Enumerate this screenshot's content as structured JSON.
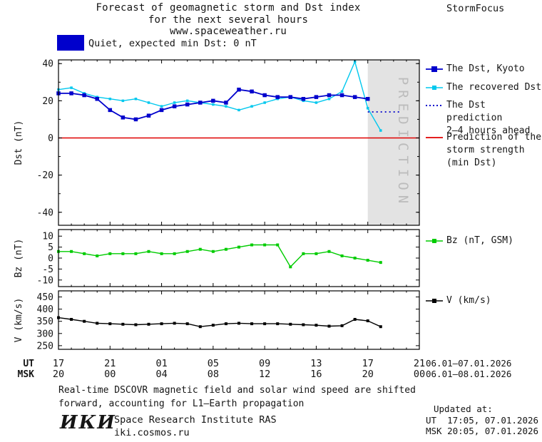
{
  "header": {
    "title_line1": "Forecast of geomagnetic storm and Dst index",
    "title_line2": "for the next several hours",
    "title_line3": "www.spaceweather.ru",
    "brand": "StormFocus"
  },
  "status": {
    "label": "Quiet, expected min Dst: 0 nT"
  },
  "colors": {
    "dst_blue": "#0000cc",
    "recovered_cyan": "#00c8ee",
    "storm_red": "#e00000",
    "bz_green": "#00cc00",
    "v_black": "#000000",
    "quiet_blue": "#0000cc",
    "band_gray": "#e3e3e3"
  },
  "legend": {
    "dst_kyoto": "The Dst, Kyoto",
    "recovered": "The recovered Dst",
    "prediction_line1": "The Dst prediction",
    "prediction_line2": "2–4 hours ahead",
    "storm_line1": "Prediction of the",
    "storm_line2": "storm strength",
    "storm_line3": "(min Dst)",
    "bz": "Bz (nT, GSM)",
    "v": "V (km/s)"
  },
  "axes": {
    "ut_label": "UT",
    "msk_label": "MSK",
    "ut_ticks": [
      "17",
      "21",
      "01",
      "05",
      "09",
      "13",
      "17",
      "21"
    ],
    "msk_ticks": [
      "20",
      "00",
      "04",
      "08",
      "12",
      "16",
      "20",
      "00"
    ],
    "date_range_ut": "06.01–07.01.2026",
    "date_range_msk": "06.01–08.01.2026"
  },
  "prediction_band_label": "PREDICTION",
  "footer": {
    "note_line1": "Real-time DSCOVR magnetic field and solar wind speed are shifted",
    "note_line2": "forward, accounting for L1–Earth propagation",
    "logo": "ИКИ",
    "institute": "Space Research Institute RAS",
    "site": "iki.cosmos.ru",
    "updated_label": "Updated at:",
    "updated_ut": "UT  17:05, 07.01.2026",
    "updated_msk": "MSK 20:05, 07.01.2026"
  },
  "chart_data": [
    {
      "name": "dst",
      "type": "line",
      "title": "Forecast of geomagnetic storm and Dst index for the next several hours",
      "ylabel": "Dst (nT)",
      "ylim": [
        -47,
        42
      ],
      "yticks": [
        40,
        20,
        0,
        -20,
        -40
      ],
      "ytick_minor_step": 10,
      "xlim": [
        0,
        28
      ],
      "x_unit": "hours since 17:00 UT 06.01.2026",
      "prediction_band": [
        24,
        28
      ],
      "band_color": "#e3e3e3",
      "band_text_color": "#bcbcbc",
      "series": [
        {
          "id": "storm-strength-min-dst",
          "name": "Prediction of the storm strength (min Dst)",
          "color": "#e00000",
          "style": "solid",
          "width": 1.6,
          "x": [
            0,
            28
          ],
          "values": [
            0,
            0
          ]
        },
        {
          "id": "recovered-dst",
          "name": "The recovered Dst",
          "color": "#00c8ee",
          "width": 1.4,
          "marker_size": 3.5,
          "x": [
            0,
            1,
            2,
            3,
            4,
            5,
            6,
            7,
            8,
            9,
            10,
            11,
            12,
            13,
            14,
            15,
            16,
            17,
            18,
            19,
            20,
            21,
            22,
            23,
            24,
            25
          ],
          "values": [
            26,
            27,
            24,
            22,
            21,
            20,
            21,
            19,
            17,
            19,
            20,
            19,
            18,
            17,
            15,
            17,
            19,
            21,
            22,
            20,
            19,
            21,
            25,
            41,
            16,
            4
          ]
        },
        {
          "id": "dst-kyoto",
          "name": "The Dst, Kyoto",
          "color": "#0000cc",
          "width": 1.8,
          "marker_size": 5.5,
          "x": [
            0,
            1,
            2,
            3,
            4,
            5,
            6,
            7,
            8,
            9,
            10,
            11,
            12,
            13,
            14,
            15,
            16,
            17,
            18,
            19,
            20,
            21,
            22,
            23,
            24
          ],
          "values": [
            24,
            24,
            23,
            21,
            15,
            11,
            10,
            12,
            15,
            17,
            18,
            19,
            20,
            19,
            26,
            25,
            23,
            22,
            22,
            21,
            22,
            23,
            23,
            22,
            21
          ]
        },
        {
          "id": "dst-prediction",
          "name": "The Dst prediction 2–4 hours ahead",
          "color": "#0000cc",
          "style": "dotted",
          "width": 1.8,
          "x": [
            24,
            26.5
          ],
          "values": [
            14,
            14
          ]
        }
      ]
    },
    {
      "name": "bz",
      "type": "line",
      "ylabel": "Bz (nT)",
      "ylim": [
        -13,
        13
      ],
      "yticks": [
        10,
        5,
        0,
        -5,
        -10
      ],
      "xlim": [
        0,
        28
      ],
      "series": [
        {
          "id": "bz-gsm",
          "name": "Bz (nT, GSM)",
          "color": "#00cc00",
          "width": 1.4,
          "marker_size": 4,
          "x": [
            0,
            1,
            2,
            3,
            4,
            5,
            6,
            7,
            8,
            9,
            10,
            11,
            12,
            13,
            14,
            15,
            16,
            17,
            18,
            19,
            20,
            21,
            22,
            23,
            24,
            25
          ],
          "values": [
            3,
            3,
            2,
            1,
            2,
            2,
            2,
            3,
            2,
            2,
            3,
            4,
            3,
            4,
            5,
            6,
            6,
            6,
            -4,
            2,
            2,
            3,
            1,
            0,
            -1,
            -2
          ]
        }
      ]
    },
    {
      "name": "v",
      "type": "line",
      "ylabel": "V (km/s)",
      "ylim": [
        235,
        475
      ],
      "yticks": [
        450,
        400,
        350,
        300,
        250
      ],
      "xlim": [
        0,
        28
      ],
      "series": [
        {
          "id": "solar-wind-speed",
          "name": "V (km/s)",
          "color": "#000000",
          "width": 1.4,
          "marker_size": 4,
          "x": [
            0,
            1,
            2,
            3,
            4,
            5,
            6,
            7,
            8,
            9,
            10,
            11,
            12,
            13,
            14,
            15,
            16,
            17,
            18,
            19,
            20,
            21,
            22,
            23,
            24,
            25
          ],
          "values": [
            365,
            358,
            350,
            342,
            340,
            338,
            336,
            338,
            340,
            342,
            340,
            328,
            334,
            340,
            342,
            340,
            340,
            340,
            338,
            336,
            334,
            330,
            332,
            358,
            352,
            328
          ]
        }
      ]
    }
  ]
}
